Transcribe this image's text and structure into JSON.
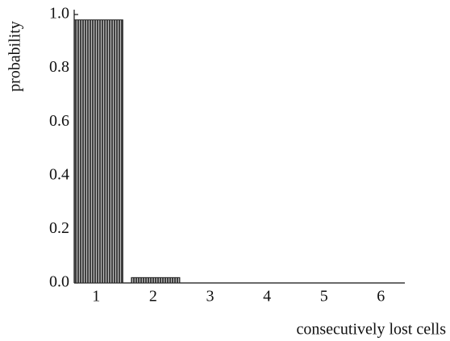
{
  "chart_data": {
    "type": "bar",
    "x_label": "consecutively lost cells",
    "y_label": "probability",
    "categories": [
      "1",
      "2",
      "3",
      "4",
      "5",
      "6"
    ],
    "values": [
      0.98,
      0.02,
      0,
      0,
      0,
      0
    ],
    "color": "#6e6e6e",
    "ylim": [
      0,
      1
    ],
    "yticks": [
      {
        "value": 0,
        "label": "0.0"
      },
      0.2,
      0.4,
      0.6,
      0.8,
      {
        "value": 1,
        "label": "1.0"
      }
    ],
    "grid": false
  }
}
